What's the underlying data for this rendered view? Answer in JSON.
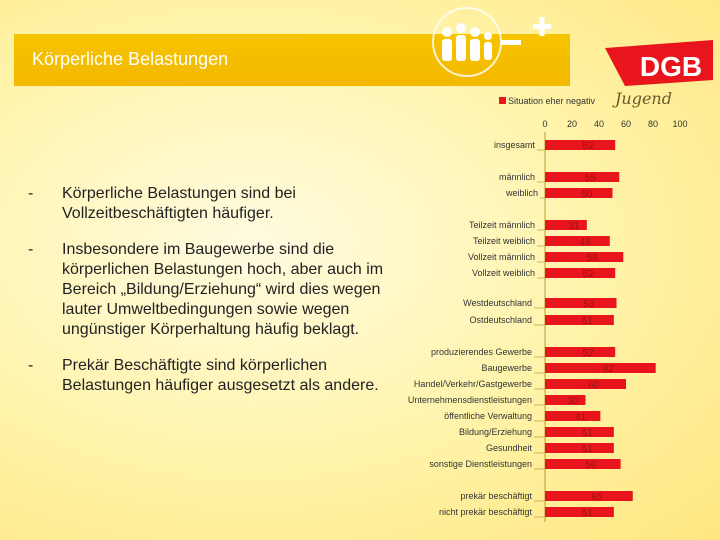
{
  "slide": {
    "title": "Körperliche Belastungen",
    "bullets": [
      {
        "marker": "-",
        "text": "Körperliche Belastungen sind bei Vollzeitbeschäftigten häufiger."
      },
      {
        "marker": "-",
        "text": "Insbesondere im Baugewerbe sind die körperlichen Belastungen hoch, aber auch im Bereich „Bildung/Erziehung“ wird dies wegen lauter Umweltbedingungen sowie wegen ungünstiger Körperhaltung häufig beklagt."
      },
      {
        "marker": "-",
        "text": "Prekär Beschäftigte sind körperlichen Belastungen häufiger ausgesetzt als andere."
      }
    ]
  },
  "logo": {
    "text": "DGB",
    "subtext": "Jugend",
    "signs": "–+"
  },
  "colors": {
    "bar": "#e8161c",
    "bar_text": "#9a1214",
    "title_bg": "#f3b800",
    "background": "#fff3a8"
  },
  "chart_data": {
    "type": "bar",
    "orientation": "horizontal",
    "title": "",
    "legend": {
      "label": "Situation eher negativ",
      "position": "top"
    },
    "xlim": [
      0,
      100
    ],
    "ticks": [
      "0",
      "20",
      "40",
      "60",
      "80",
      "100"
    ],
    "tick_values": [
      0,
      20,
      40,
      60,
      80,
      100
    ],
    "categories": [
      "insgesamt",
      "männlich",
      "weiblich",
      "Teilzeit männlich",
      "Teilzeit weiblich",
      "Vollzeit männlich",
      "Vollzeit weiblich",
      "Westdeutschland",
      "Ostdeutschland",
      "produzierendes Gewerbe",
      "Baugewerbe",
      "Handel/Verkehr/Gastgewerbe",
      "Unternehmensdienstleistungen",
      "öffentliche Verwaltung",
      "Bildung/Erziehung",
      "Gesundheit",
      "sonstige Dienstleistungen",
      "prekär beschäftigt",
      "nicht prekär beschäftigt"
    ],
    "values": [
      52,
      55,
      50,
      31,
      48,
      58,
      52,
      53,
      51,
      52,
      82,
      60,
      30,
      41,
      51,
      51,
      56,
      65,
      51
    ],
    "labels": [
      "52",
      "55",
      "50",
      "31",
      "48",
      "58",
      "52",
      "53",
      "51",
      "52",
      "82",
      "60",
      "30",
      "41",
      "51",
      "51",
      "56",
      "65",
      "51"
    ]
  }
}
